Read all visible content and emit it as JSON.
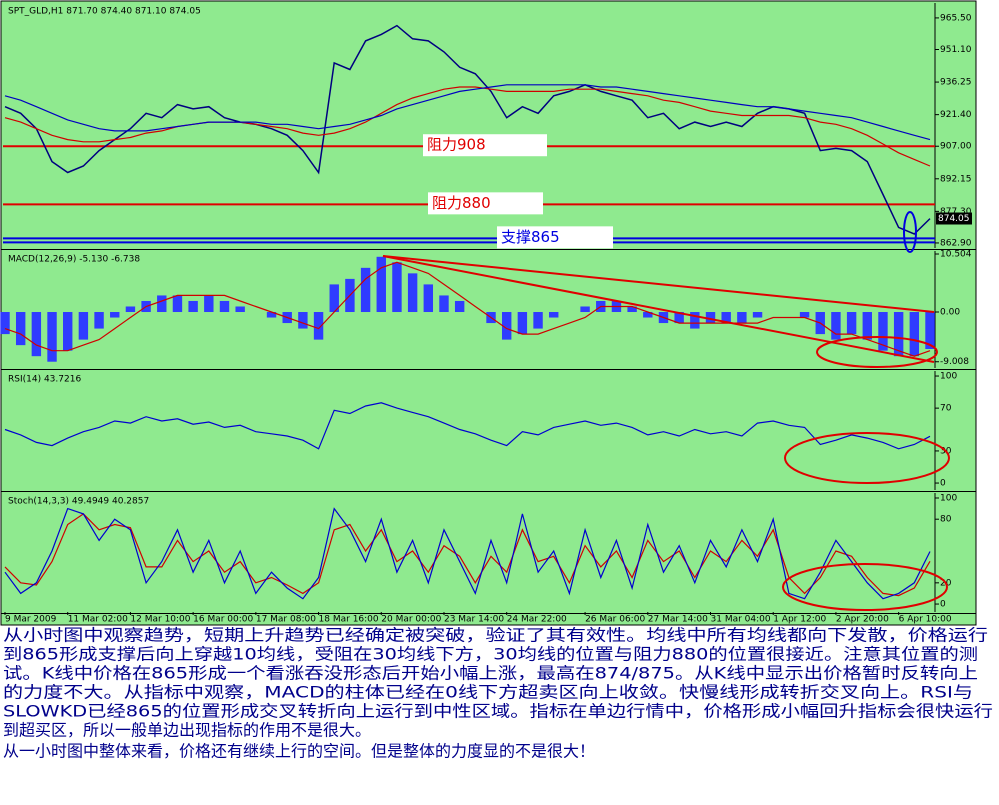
{
  "chart_data": [
    {
      "type": "line",
      "title": "SPT_GLD,H1  871.70 874.40 871.10 874.05",
      "ylim": [
        860.6,
        972.3
      ],
      "yticks": [
        {
          "value": 965.5,
          "label": "965.50"
        },
        {
          "value": 951.1,
          "label": "951.10"
        },
        {
          "value": 936.25,
          "label": "936.25"
        },
        {
          "value": 921.4,
          "label": "921.40"
        },
        {
          "value": 907,
          "label": "907.00"
        },
        {
          "value": 892.15,
          "label": "892.15"
        },
        {
          "value": 877.3,
          "label": "877.30"
        },
        {
          "value": 862.9,
          "label": "862.90"
        }
      ],
      "last": 874.05,
      "levels": [
        {
          "value": 907,
          "label": "阻力908",
          "color": "#e00000"
        },
        {
          "value": 880.5,
          "label": "阻力880",
          "color": "#e00000"
        },
        {
          "value": 865,
          "label": "支撑865",
          "color": "#0000e0"
        }
      ],
      "series": [
        {
          "type": "line",
          "color": "#000080",
          "values": [
            925,
            922,
            915,
            900,
            895,
            898,
            905,
            910,
            915,
            922,
            920,
            926,
            924,
            925,
            920,
            918,
            917,
            915,
            912,
            905,
            895,
            945,
            942,
            955,
            958,
            962,
            956,
            955,
            950,
            943,
            940,
            932,
            920,
            925,
            922,
            930,
            932,
            935,
            932,
            930,
            928,
            920,
            922,
            915,
            918,
            916,
            918,
            916,
            922,
            925,
            924,
            922,
            905,
            906,
            905,
            900,
            885,
            870,
            867,
            874
          ]
        },
        {
          "type": "line",
          "color": "#d00000",
          "values": [
            920,
            918,
            915,
            912,
            910,
            909,
            909,
            910,
            911,
            913,
            914,
            916,
            917,
            918,
            918,
            918,
            917,
            916,
            915,
            913,
            912,
            913,
            915,
            918,
            922,
            926,
            929,
            931,
            933,
            934,
            934,
            933,
            932,
            932,
            932,
            932,
            933,
            933,
            933,
            932,
            931,
            930,
            928,
            927,
            925,
            923,
            922,
            921,
            921,
            921,
            921,
            920,
            918,
            917,
            915,
            912,
            908,
            904,
            901,
            898
          ]
        },
        {
          "type": "line",
          "color": "#0000c0",
          "values": [
            930,
            928,
            925,
            922,
            919,
            917,
            915,
            914,
            914,
            914,
            915,
            916,
            917,
            918,
            918,
            918,
            918,
            917,
            917,
            916,
            915,
            916,
            917,
            919,
            921,
            924,
            926,
            928,
            930,
            932,
            933,
            934,
            935,
            935,
            935,
            935,
            935,
            935,
            934,
            934,
            933,
            932,
            931,
            930,
            929,
            928,
            927,
            926,
            925,
            925,
            924,
            923,
            922,
            921,
            920,
            918,
            916,
            914,
            912,
            910
          ]
        }
      ]
    },
    {
      "type": "bar",
      "title": "MACD(12,26,9) -5.130 -6.738",
      "ylim": [
        -10.14,
        11.05
      ],
      "yticks": [
        10.504,
        {
          "value": 0,
          "label": "0.00"
        },
        -9.008
      ],
      "series": [
        {
          "type": "bar",
          "color": "#2f3cff",
          "values": [
            -4,
            -6,
            -8,
            -9,
            -7,
            -5,
            -3,
            -1,
            1,
            2,
            3,
            3,
            2,
            3,
            2,
            1,
            0,
            -1,
            -2,
            -3,
            -5,
            5,
            6,
            8,
            10,
            9,
            7,
            5,
            3,
            2,
            0,
            -2,
            -5,
            -4,
            -3,
            -1,
            0,
            1,
            2,
            2,
            1,
            -1,
            -2,
            -2,
            -3,
            -2,
            -2,
            -2,
            -1,
            0,
            0,
            -1,
            -4,
            -5,
            -4,
            -5,
            -7,
            -8,
            -8,
            -6.7
          ]
        },
        {
          "type": "line",
          "color": "#d00000",
          "values": [
            -3,
            -4,
            -6,
            -7,
            -7,
            -6,
            -5,
            -3,
            -1,
            1,
            2,
            3,
            3,
            3,
            3,
            2,
            1,
            0,
            -1,
            -2,
            -3,
            0,
            3,
            6,
            8,
            9,
            8,
            7,
            5,
            3,
            1,
            -1,
            -3,
            -4,
            -4,
            -3,
            -2,
            -1,
            1,
            1,
            1,
            0,
            -1,
            -2,
            -2,
            -2,
            -2,
            -2,
            -2,
            -1,
            -1,
            -1,
            -2,
            -4,
            -4,
            -5,
            -6,
            -7,
            -8,
            -7
          ]
        }
      ]
    },
    {
      "type": "line",
      "title": "RSI(14) 43.7216",
      "ylim": [
        -6.5,
        104.7
      ],
      "yticks": [
        100,
        70,
        30,
        0
      ],
      "series": [
        {
          "type": "line",
          "color": "#0000d0",
          "values": [
            50,
            45,
            38,
            35,
            42,
            48,
            52,
            58,
            56,
            62,
            58,
            60,
            55,
            57,
            52,
            54,
            48,
            46,
            44,
            40,
            32,
            68,
            65,
            72,
            75,
            70,
            66,
            62,
            56,
            50,
            46,
            40,
            35,
            48,
            45,
            52,
            55,
            58,
            54,
            56,
            52,
            45,
            48,
            44,
            50,
            46,
            48,
            44,
            56,
            58,
            54,
            52,
            36,
            40,
            45,
            42,
            38,
            32,
            36,
            43.7
          ]
        }
      ]
    },
    {
      "type": "line",
      "title": "Stoch(14,3,3) 49.4949 40.2857",
      "ylim": [
        -7.5,
        104.7
      ],
      "yticks": [
        100,
        80,
        20,
        0
      ],
      "categories": [
        "9 Mar 2009",
        null,
        null,
        null,
        "11 Mar 02:00",
        null,
        null,
        null,
        "12 Mar 10:00",
        null,
        null,
        null,
        "16 Mar 00:00",
        null,
        null,
        null,
        "17 Mar 08:00",
        null,
        null,
        null,
        "18 Mar 16:00",
        null,
        null,
        null,
        "20 Mar 00:00",
        null,
        null,
        null,
        "23 Mar 14:00",
        null,
        null,
        null,
        "24 Mar 22:00",
        null,
        null,
        null,
        null,
        "26 Mar 06:00",
        null,
        null,
        null,
        "27 Mar 14:00",
        null,
        null,
        null,
        "31 Mar 04:00",
        null,
        null,
        null,
        "1 Apr 12:00",
        null,
        null,
        null,
        "2 Apr 20:00",
        null,
        null,
        null,
        "6 Apr 10:00",
        null,
        null
      ],
      "series": [
        {
          "type": "line",
          "color": "#d00000",
          "values": [
            35,
            20,
            18,
            40,
            75,
            85,
            70,
            75,
            72,
            35,
            35,
            60,
            40,
            50,
            30,
            40,
            20,
            25,
            18,
            10,
            20,
            70,
            75,
            50,
            70,
            40,
            50,
            30,
            55,
            45,
            20,
            45,
            30,
            70,
            40,
            45,
            20,
            55,
            35,
            50,
            25,
            60,
            40,
            50,
            25,
            50,
            40,
            60,
            45,
            70,
            25,
            10,
            25,
            50,
            45,
            25,
            10,
            8,
            15,
            40.3
          ]
        },
        {
          "type": "line",
          "color": "#0000d0",
          "values": [
            30,
            10,
            20,
            50,
            90,
            85,
            60,
            80,
            70,
            20,
            40,
            70,
            30,
            60,
            20,
            50,
            10,
            30,
            15,
            5,
            25,
            90,
            70,
            40,
            80,
            30,
            60,
            20,
            70,
            40,
            10,
            60,
            20,
            85,
            30,
            50,
            10,
            70,
            25,
            60,
            15,
            75,
            30,
            55,
            20,
            60,
            35,
            70,
            40,
            80,
            10,
            5,
            30,
            60,
            40,
            20,
            5,
            10,
            20,
            49.5
          ]
        }
      ]
    }
  ],
  "commentary": [
    "从小时图中观察趋势，短期上升趋势已经确定被突破，验证了其有效性。均线中所有均线都向下发散，价格运行",
    "到865形成支撑后向上穿越10均线，受阻在30均线下方，30均线的位置与阻力880的位置很接近。注意其位置的测",
    "试。K线中价格在865形成一个看涨吞没形态后开始小幅上涨，最高在874/875。从K线中显示出价格暂时反转向上",
    "的力度不大。从指标中观察，MACD的柱体已经在0线下方超卖区向上收敛。快慢线形成转折交叉向上。RSI与",
    "SLOWKD已经865的位置形成交叉转折向上运行到中性区域。指标在单边行情中，价格形成小幅回升指标会很快运行",
    "到超买区，所以一般单边出现指标的作用不是很大。",
    "从一小时图中整体来看，价格还有继续上行的空间。但是整体的力度显的不是很大！"
  ]
}
